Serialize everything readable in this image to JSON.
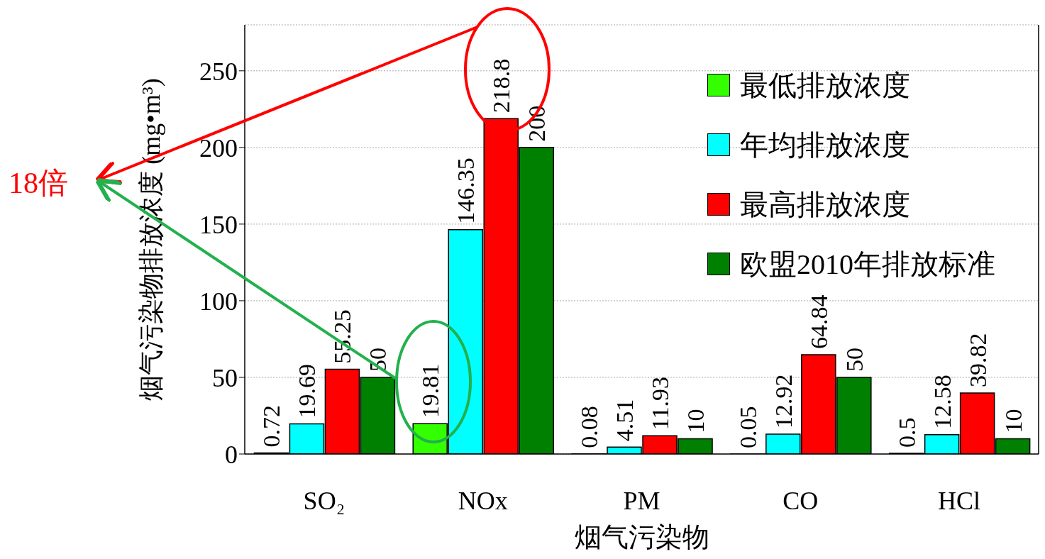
{
  "chart_data": {
    "type": "bar",
    "xlabel": "烟气污染物",
    "ylabel": "烟气污染物排放浓度 (mg•m³)",
    "categories": [
      "SO₂",
      "NOx",
      "PM",
      "CO",
      "HCl"
    ],
    "series": [
      {
        "name": "最低排放浓度",
        "color": "#33ff00",
        "values": [
          0.72,
          19.81,
          0.08,
          0.05,
          0.5
        ]
      },
      {
        "name": "年均排放浓度",
        "color": "#00ffff",
        "values": [
          19.69,
          146.35,
          4.51,
          12.92,
          12.58
        ]
      },
      {
        "name": "最高排放浓度",
        "color": "#ff0000",
        "values": [
          55.25,
          218.8,
          11.93,
          64.84,
          39.82
        ]
      },
      {
        "name": "欧盟2010年排放标准",
        "color": "#008000",
        "values": [
          50,
          200,
          10,
          50,
          10
        ]
      }
    ],
    "ylim": [
      0,
      280
    ],
    "yticks": [
      0,
      50,
      100,
      150,
      200,
      250
    ],
    "grid": "y",
    "legend": "top right",
    "data_labels": true,
    "annotations": [
      "18倍"
    ]
  }
}
